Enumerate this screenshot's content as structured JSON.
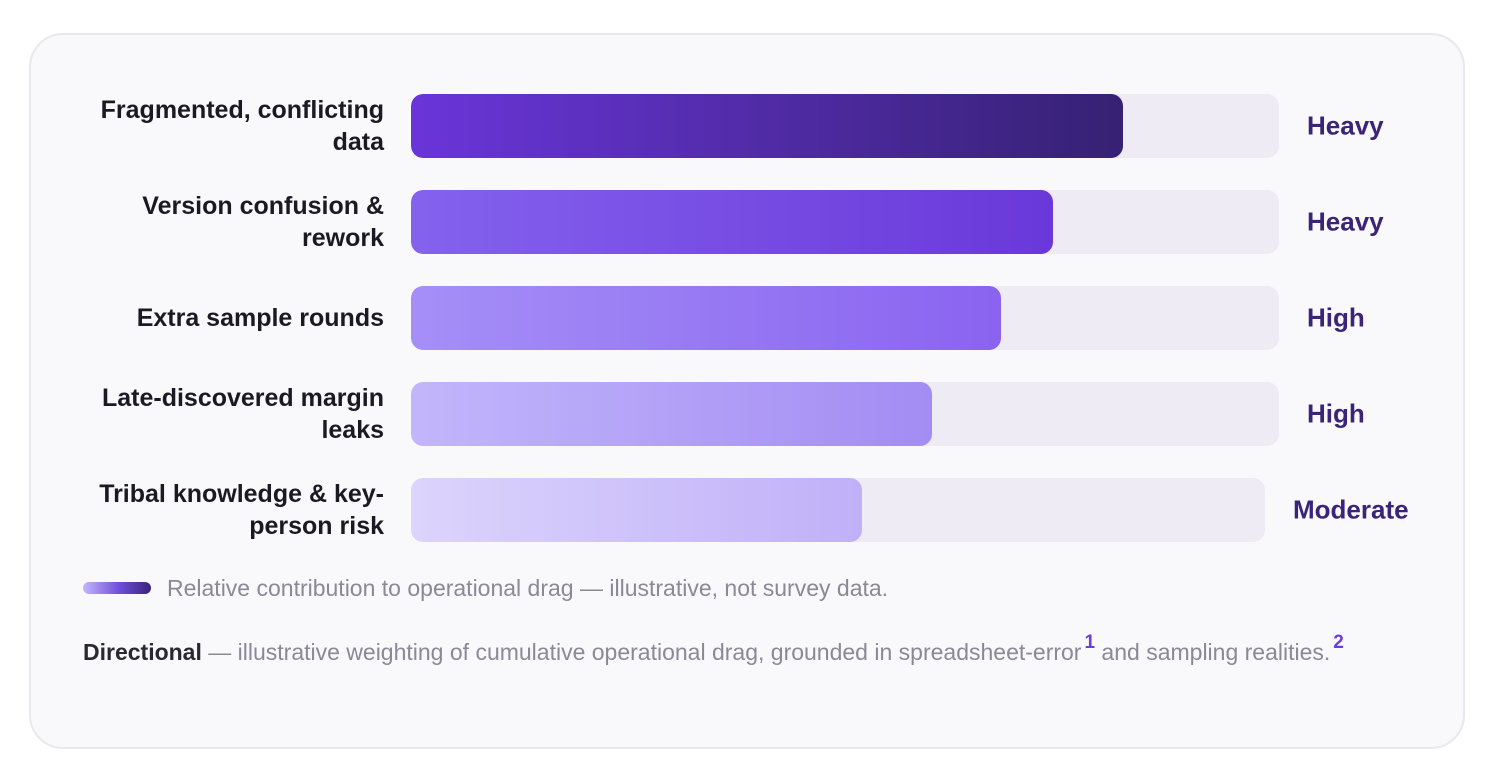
{
  "chart_data": {
    "type": "bar",
    "orientation": "horizontal",
    "categories": [
      "Fragmented, conflicting data",
      "Version confusion & rework",
      "Extra sample rounds",
      "Late-discovered margin leaks",
      "Tribal knowledge & key-person risk"
    ],
    "values": [
      0.82,
      0.74,
      0.68,
      0.6,
      0.52
    ],
    "value_labels": [
      "Heavy",
      "Heavy",
      "High",
      "High",
      "Moderate"
    ],
    "xlim": [
      0,
      1
    ],
    "grid": false,
    "colors": [
      [
        "#6a35d9",
        "#362173"
      ],
      [
        "#8462ee",
        "#6a38d9"
      ],
      [
        "#a58ff7",
        "#8a63f0"
      ],
      [
        "#c2b6fb",
        "#a38cf3"
      ],
      [
        "#dcd4fc",
        "#c0b0f8"
      ]
    ],
    "legend": "Relative contribution to operational drag — illustrative, not survey data."
  },
  "footnote": {
    "lead": "Directional",
    "text_a": " — illustrative weighting of cumulative operational drag, grounded in spreadsheet-error",
    "ref_1": "1",
    "text_b": " and sampling realities.",
    "ref_2": "2"
  }
}
